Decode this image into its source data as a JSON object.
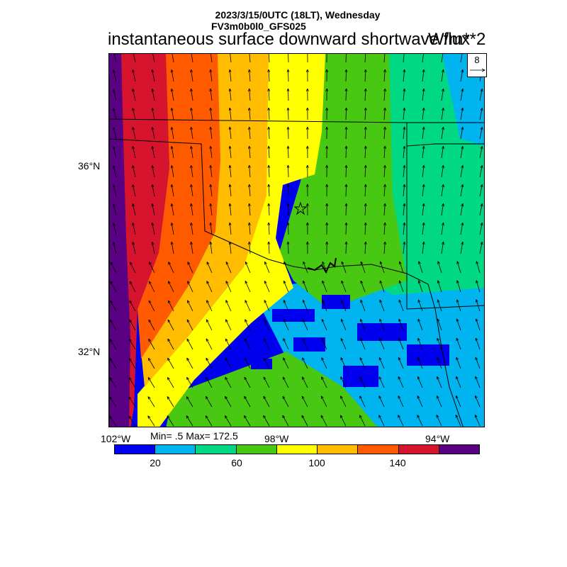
{
  "header": {
    "date_line": "2023/3/15/0UTC (18LT), Wednesday",
    "model_line": "FV3m0b0l0_GFS025",
    "variable_title": "instantaneous surface downward shortwave flux",
    "units": "W/m**2"
  },
  "map": {
    "lat_labels": [
      "36°N",
      "32°N"
    ],
    "lon_labels": [
      "102°W",
      "98°W",
      "94°W"
    ],
    "station_marker": "star-icon",
    "vector_reference": "8"
  },
  "stats": {
    "label": "Min= .5 Max= 172.5"
  },
  "colorbar": {
    "colors": [
      "#0000ee",
      "#00b4f0",
      "#00d884",
      "#48c812",
      "#ffff00",
      "#ffbc00",
      "#ff5a00",
      "#d7142d",
      "#5a0082"
    ],
    "labels": [
      "20",
      "60",
      "100",
      "140"
    ]
  }
}
